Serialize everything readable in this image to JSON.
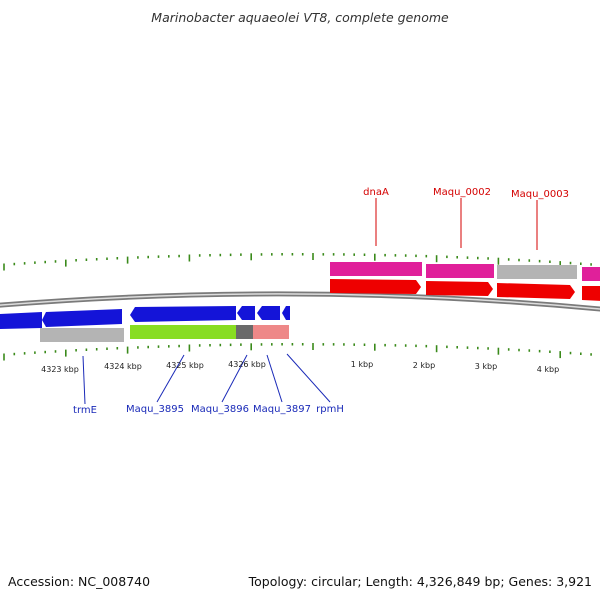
{
  "title": "Marinobacter aquaeolei VT8, complete genome",
  "footer": {
    "accession": "Accession: NC_008740",
    "summary": "Topology: circular; Length: 4,326,849 bp; Genes: 3,921"
  },
  "colors": {
    "tick": "#3a8a1a",
    "backbone_outer": "#7a7a7a",
    "backbone_inner": "#dddddd",
    "label_forward": "#d40000",
    "label_reverse": "#1a2ab8",
    "gene_pink": "#e0209a",
    "gene_red": "#ee0000",
    "gene_blue": "#1414d8",
    "gene_grey": "#b4b4b4",
    "gene_green": "#88dd22",
    "gene_darkgrey": "#6a6a6a",
    "gene_salmon": "#ee8888"
  },
  "scale_labels": [
    "4323 kbp",
    "4324 kbp",
    "4325 kbp",
    "4326 kbp",
    "1 kbp",
    "2 kbp",
    "3 kbp",
    "4 kbp"
  ],
  "forward_gene_labels": [
    "dnaA",
    "Maqu_0002",
    "Maqu_0003"
  ],
  "reverse_gene_labels": [
    "trmE",
    "Maqu_3895",
    "Maqu_3896",
    "Maqu_3897",
    "rpmH"
  ]
}
